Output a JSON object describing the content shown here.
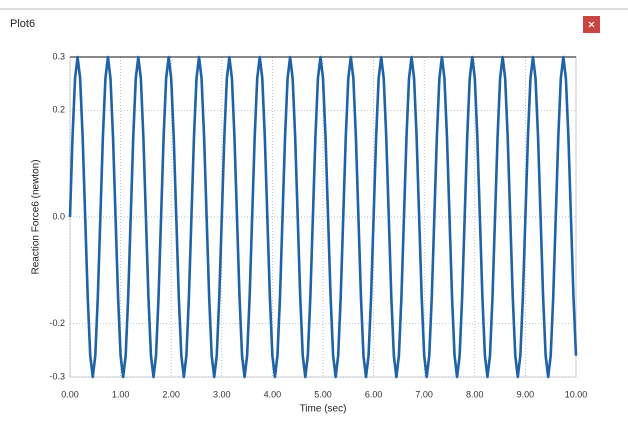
{
  "window": {
    "title": "Plot6"
  },
  "chart_data": {
    "type": "line",
    "xlabel": "Time (sec)",
    "ylabel": "Reaction Force6 (newton)",
    "x": [
      0,
      0.05,
      0.1,
      0.15,
      0.2,
      0.25,
      0.3,
      0.35,
      0.4,
      0.45,
      0.5,
      0.55,
      0.6,
      0.65,
      0.7,
      0.75,
      0.8,
      0.85,
      0.9,
      0.95,
      1,
      1.05,
      1.1,
      1.15,
      1.2,
      1.25,
      1.3,
      1.35,
      1.4,
      1.45,
      1.5,
      1.55,
      1.6,
      1.65,
      1.7,
      1.75,
      1.8,
      1.85,
      1.9,
      1.95,
      2,
      2.05,
      2.1,
      2.15,
      2.2,
      2.25,
      2.3,
      2.35,
      2.4,
      2.45,
      2.5,
      2.55,
      2.6,
      2.65,
      2.7,
      2.75,
      2.8,
      2.85,
      2.9,
      2.95,
      3,
      3.05,
      3.1,
      3.15,
      3.2,
      3.25,
      3.3,
      3.35,
      3.4,
      3.45,
      3.5,
      3.55,
      3.6,
      3.65,
      3.7,
      3.75,
      3.8,
      3.85,
      3.9,
      3.95,
      4,
      4.05,
      4.1,
      4.15,
      4.2,
      4.25,
      4.3,
      4.35,
      4.4,
      4.45,
      4.5,
      4.55,
      4.6,
      4.65,
      4.7,
      4.75,
      4.8,
      4.85,
      4.9,
      4.95,
      5,
      5.05,
      5.1,
      5.15,
      5.2,
      5.25,
      5.3,
      5.35,
      5.4,
      5.45,
      5.5,
      5.55,
      5.6,
      5.65,
      5.7,
      5.75,
      5.8,
      5.85,
      5.9,
      5.95,
      6,
      6.05,
      6.1,
      6.15,
      6.2,
      6.25,
      6.3,
      6.35,
      6.4,
      6.45,
      6.5,
      6.55,
      6.6,
      6.65,
      6.7,
      6.75,
      6.8,
      6.85,
      6.9,
      6.95,
      7,
      7.05,
      7.1,
      7.15,
      7.2,
      7.25,
      7.3,
      7.35,
      7.4,
      7.45,
      7.5,
      7.55,
      7.6,
      7.65,
      7.7,
      7.75,
      7.8,
      7.85,
      7.9,
      7.95,
      8,
      8.05,
      8.1,
      8.15,
      8.2,
      8.25,
      8.3,
      8.35,
      8.4,
      8.45,
      8.5,
      8.55,
      8.6,
      8.65,
      8.7,
      8.75,
      8.8,
      8.85,
      8.9,
      8.95,
      9,
      9.05,
      9.1,
      9.15,
      9.2,
      9.25,
      9.3,
      9.35,
      9.4,
      9.45,
      9.5,
      9.55,
      9.6,
      9.65,
      9.7,
      9.75,
      9.8,
      9.85,
      9.9,
      9.95,
      10
    ],
    "series": [
      {
        "color": "#1f62a6",
        "values": [
          0,
          0.15,
          0.26,
          0.3,
          0.26,
          0.15,
          0,
          -0.15,
          -0.26,
          -0.3,
          -0.26,
          -0.15,
          0,
          0.15,
          0.26,
          0.3,
          0.26,
          0.15,
          0,
          -0.15,
          -0.26,
          -0.3,
          -0.26,
          -0.15,
          0,
          0.15,
          0.26,
          0.3,
          0.26,
          0.15,
          0,
          -0.15,
          -0.26,
          -0.3,
          -0.26,
          -0.15,
          0,
          0.15,
          0.26,
          0.3,
          0.26,
          0.15,
          0,
          -0.15,
          -0.26,
          -0.3,
          -0.26,
          -0.15,
          0,
          0.15,
          0.26,
          0.3,
          0.26,
          0.15,
          0,
          -0.15,
          -0.26,
          -0.3,
          -0.26,
          -0.15,
          0,
          0.15,
          0.26,
          0.3,
          0.26,
          0.15,
          0,
          -0.15,
          -0.26,
          -0.3,
          -0.26,
          -0.15,
          0,
          0.15,
          0.26,
          0.3,
          0.26,
          0.15,
          0,
          -0.15,
          -0.26,
          -0.3,
          -0.26,
          -0.15,
          0,
          0.15,
          0.26,
          0.3,
          0.26,
          0.15,
          0,
          -0.15,
          -0.26,
          -0.3,
          -0.26,
          -0.15,
          0,
          0.15,
          0.26,
          0.3,
          0.26,
          0.15,
          0,
          -0.15,
          -0.26,
          -0.3,
          -0.26,
          -0.15,
          0,
          0.15,
          0.26,
          0.3,
          0.26,
          0.15,
          0,
          -0.15,
          -0.26,
          -0.3,
          -0.26,
          -0.15,
          0,
          0.15,
          0.26,
          0.3,
          0.26,
          0.15,
          0,
          -0.15,
          -0.26,
          -0.3,
          -0.26,
          -0.15,
          0,
          0.15,
          0.26,
          0.3,
          0.26,
          0.15,
          0,
          -0.15,
          -0.26,
          -0.3,
          -0.26,
          -0.15,
          0,
          0.15,
          0.26,
          0.3,
          0.26,
          0.15,
          0,
          -0.15,
          -0.26,
          -0.3,
          -0.26,
          -0.15,
          0,
          0.15,
          0.26,
          0.3,
          0.26,
          0.15,
          0,
          -0.15,
          -0.26,
          -0.3,
          -0.26,
          -0.15,
          0,
          0.15,
          0.26,
          0.3,
          0.26,
          0.15,
          0,
          -0.15,
          -0.26,
          -0.3,
          -0.26,
          -0.15,
          0,
          0.15,
          0.26,
          0.3,
          0.26,
          0.15,
          0,
          -0.15,
          -0.26,
          -0.3,
          -0.26,
          -0.15,
          0,
          0.15,
          0.26,
          0.3,
          0.26,
          0.15,
          0,
          -0.15,
          -0.26
        ]
      }
    ],
    "xlim": [
      0,
      10
    ],
    "xticks": [
      {
        "value": 0,
        "label": "0.00"
      },
      {
        "value": 1,
        "label": "1.00"
      },
      {
        "value": 2,
        "label": "2.00"
      },
      {
        "value": 3,
        "label": "3.00"
      },
      {
        "value": 4,
        "label": "4.00"
      },
      {
        "value": 5,
        "label": "5.00"
      },
      {
        "value": 6,
        "label": "6.00"
      },
      {
        "value": 7,
        "label": "7.00"
      },
      {
        "value": 8,
        "label": "8.00"
      },
      {
        "value": 9,
        "label": "9.00"
      },
      {
        "value": 10,
        "label": "10.00"
      }
    ],
    "ylim": [
      -0.3,
      0.3
    ],
    "yticks": [
      -0.3,
      -0.2,
      {
        "value": 0,
        "label": "0.0"
      },
      0.2,
      0.3
    ],
    "grid": true
  }
}
